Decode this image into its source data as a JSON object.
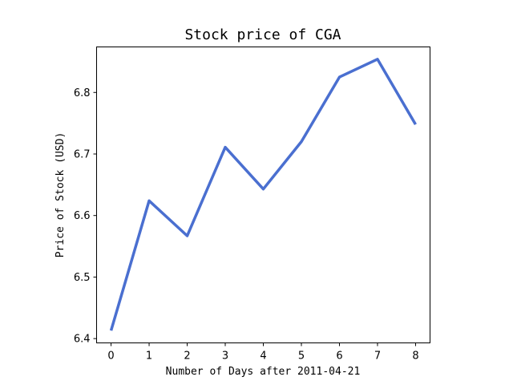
{
  "chart_data": {
    "type": "line",
    "title": "Stock price of CGA",
    "xlabel": "Number of Days after 2011-04-21",
    "ylabel": "Price of Stock (USD)",
    "x": [
      0,
      1,
      2,
      3,
      4,
      5,
      6,
      7,
      8
    ],
    "series": [
      {
        "values": [
          6.413,
          6.624,
          6.567,
          6.711,
          6.643,
          6.72,
          6.825,
          6.854,
          6.748
        ],
        "color": "#4a6fd0"
      }
    ],
    "xlim": [
      -0.38,
      8.38
    ],
    "ylim": [
      6.393,
      6.874
    ],
    "xticks": [
      0,
      1,
      2,
      3,
      4,
      5,
      6,
      7,
      8
    ],
    "yticks": [
      6.4,
      6.5,
      6.6,
      6.7,
      6.8
    ],
    "grid": false,
    "legend": "none"
  }
}
